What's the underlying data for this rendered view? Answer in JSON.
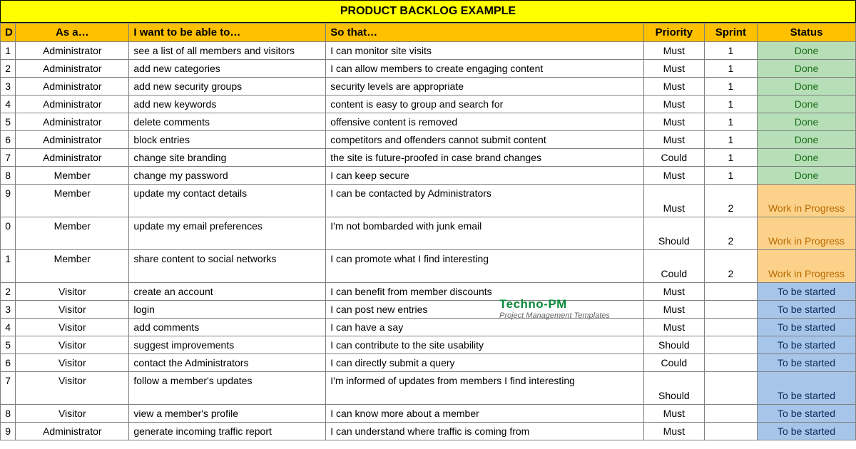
{
  "title": "PRODUCT BACKLOG EXAMPLE",
  "colors": {
    "title_bg": "#ffff00",
    "header_bg": "#ffc000",
    "border": "#808080",
    "status": {
      "Done": "#b7dfb7",
      "Work in Progress": "#fcd28a",
      "To be started": "#a7c5e8"
    },
    "status_text": {
      "Done": "#1a6d1a",
      "Work in Progress": "#b86a00",
      "To be started": "#0a2a5a"
    }
  },
  "columns": [
    "D",
    "As a…",
    "I want to be able to…",
    "So that…",
    "Priority",
    "Sprint",
    "Status"
  ],
  "col_classes": [
    "col-id",
    "col-asa",
    "col-want",
    "col-so",
    "col-prio",
    "col-sprint",
    "col-status"
  ],
  "rows": [
    {
      "id": "1",
      "asa": "Administrator",
      "want": "see a list of all members and visitors",
      "so": "I can monitor site visits",
      "priority": "Must",
      "sprint": "1",
      "status": "Done"
    },
    {
      "id": "2",
      "asa": "Administrator",
      "want": "add new categories",
      "so": "I can allow members to create engaging content",
      "priority": "Must",
      "sprint": "1",
      "status": "Done"
    },
    {
      "id": "3",
      "asa": "Administrator",
      "want": "add new security groups",
      "so": "security levels are appropriate",
      "priority": "Must",
      "sprint": "1",
      "status": "Done"
    },
    {
      "id": "4",
      "asa": "Administrator",
      "want": "add new keywords",
      "so": "content is easy to group and search for",
      "priority": "Must",
      "sprint": "1",
      "status": "Done"
    },
    {
      "id": "5",
      "asa": "Administrator",
      "want": "delete comments",
      "so": "offensive content is removed",
      "priority": "Must",
      "sprint": "1",
      "status": "Done"
    },
    {
      "id": "6",
      "asa": "Administrator",
      "want": "block entries",
      "so": "competitors and offenders cannot submit content",
      "priority": "Must",
      "sprint": "1",
      "status": "Done"
    },
    {
      "id": "7",
      "asa": "Administrator",
      "want": "change site branding",
      "so": "the site is future-proofed in case brand changes",
      "priority": "Could",
      "sprint": "1",
      "status": "Done"
    },
    {
      "id": "8",
      "asa": "Member",
      "want": "change my password",
      "so": "I can keep secure",
      "priority": "Must",
      "sprint": "1",
      "status": "Done"
    },
    {
      "id": "9",
      "asa": "Member",
      "want": "update my contact details",
      "so": "I can be contacted by Administrators",
      "priority": "Must",
      "sprint": "2",
      "status": "Work in Progress",
      "tall": true
    },
    {
      "id": "0",
      "asa": "Member",
      "want": "update my email preferences",
      "so": "I'm not bombarded with junk email",
      "priority": "Should",
      "sprint": "2",
      "status": "Work in Progress",
      "tall": true
    },
    {
      "id": "1",
      "asa": "Member",
      "want": "share content to social networks",
      "so": "I can promote what I find interesting",
      "priority": "Could",
      "sprint": "2",
      "status": "Work in Progress",
      "tall": true
    },
    {
      "id": "2",
      "asa": "Visitor",
      "want": "create an account",
      "so": "I can benefit from member discounts",
      "priority": "Must",
      "sprint": "",
      "status": "To be started"
    },
    {
      "id": "3",
      "asa": "Visitor",
      "want": "login",
      "so": "I can post new entries",
      "priority": "Must",
      "sprint": "",
      "status": "To be started"
    },
    {
      "id": "4",
      "asa": "Visitor",
      "want": "add comments",
      "so": "I can have a say",
      "priority": "Must",
      "sprint": "",
      "status": "To be started"
    },
    {
      "id": "5",
      "asa": "Visitor",
      "want": "suggest improvements",
      "so": "I can contribute to the site usability",
      "priority": "Should",
      "sprint": "",
      "status": "To be started"
    },
    {
      "id": "6",
      "asa": "Visitor",
      "want": "contact the Administrators",
      "so": "I can directly submit a query",
      "priority": "Could",
      "sprint": "",
      "status": "To be started"
    },
    {
      "id": "7",
      "asa": "Visitor",
      "want": "follow a member's updates",
      "so": "I'm informed of updates from members I find interesting",
      "priority": "Should",
      "sprint": "",
      "status": "To be started",
      "tall": true
    },
    {
      "id": "8",
      "asa": "Visitor",
      "want": "view a  member's profile",
      "so": "I can know more about a member",
      "priority": "Must",
      "sprint": "",
      "status": "To be started"
    },
    {
      "id": "9",
      "asa": "Administrator",
      "want": "generate incoming traffic report",
      "so": "I can understand where traffic is coming from",
      "priority": "Must",
      "sprint": "",
      "status": "To be started"
    }
  ],
  "watermark": {
    "line1": "Techno-PM",
    "line2": "Project Management Templates"
  }
}
